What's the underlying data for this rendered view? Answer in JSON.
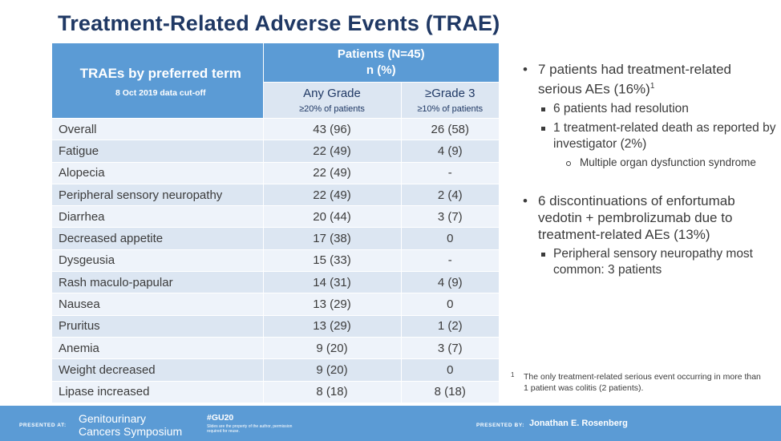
{
  "title": "Treatment-Related Adverse Events (TRAE)",
  "table": {
    "term_header": "TRAEs by preferred term",
    "cutoff": "8 Oct 2019 data cut-off",
    "patients_header_line1": "Patients (N=45)",
    "patients_header_line2": "n (%)",
    "col_any_grade": "Any Grade",
    "col_any_grade_sub": "≥20% of patients",
    "col_grade3": "≥Grade 3",
    "col_grade3_sub": "≥10% of patients",
    "rows": [
      {
        "term": "Overall",
        "any": "43 (96)",
        "g3": "26 (58)"
      },
      {
        "term": "Fatigue",
        "any": "22 (49)",
        "g3": "4 (9)"
      },
      {
        "term": "Alopecia",
        "any": "22 (49)",
        "g3": "-"
      },
      {
        "term": "Peripheral sensory neuropathy",
        "any": "22 (49)",
        "g3": "2 (4)"
      },
      {
        "term": "Diarrhea",
        "any": "20 (44)",
        "g3": "3 (7)"
      },
      {
        "term": "Decreased appetite",
        "any": "17 (38)",
        "g3": "0"
      },
      {
        "term": "Dysgeusia",
        "any": "15 (33)",
        "g3": "-"
      },
      {
        "term": "Rash maculo-papular",
        "any": "14 (31)",
        "g3": "4 (9)"
      },
      {
        "term": "Nausea",
        "any": "13 (29)",
        "g3": "0"
      },
      {
        "term": "Pruritus",
        "any": "13 (29)",
        "g3": "1 (2)"
      },
      {
        "term": "Anemia",
        "any": "9 (20)",
        "g3": "3 (7)"
      },
      {
        "term": "Weight decreased",
        "any": "9 (20)",
        "g3": "0"
      },
      {
        "term": "Lipase increased",
        "any": "8 (18)",
        "g3": "8 (18)"
      }
    ]
  },
  "bullets": {
    "b1": "7 patients had treatment-related serious AEs (16%)",
    "b1_sup": "1",
    "b1_sub1": "6 patients had resolution",
    "b1_sub2": "1 treatment-related death as reported by investigator (2%)",
    "b1_sub2_sub": "Multiple organ dysfunction syndrome",
    "b2": "6 discontinuations of enfortumab vedotin + pembrolizumab due to treatment-related AEs (13%)",
    "b2_sub1": "Peripheral sensory neuropathy most common: 3 patients"
  },
  "footnote": {
    "mark": "1",
    "text": "The only treatment-related serious event occurring in more than 1 patient was colitis (2 patients)."
  },
  "footer": {
    "presented_at": "PRESENTED AT:",
    "symposium_line1": "Genitourinary",
    "symposium_line2": "Cancers Symposium",
    "hashtag": "#GU20",
    "slides_note": "Slides are the property of the author, permission required for reuse.",
    "presented_by": "PRESENTED BY:",
    "presenter": "Jonathan E. Rosenberg"
  }
}
